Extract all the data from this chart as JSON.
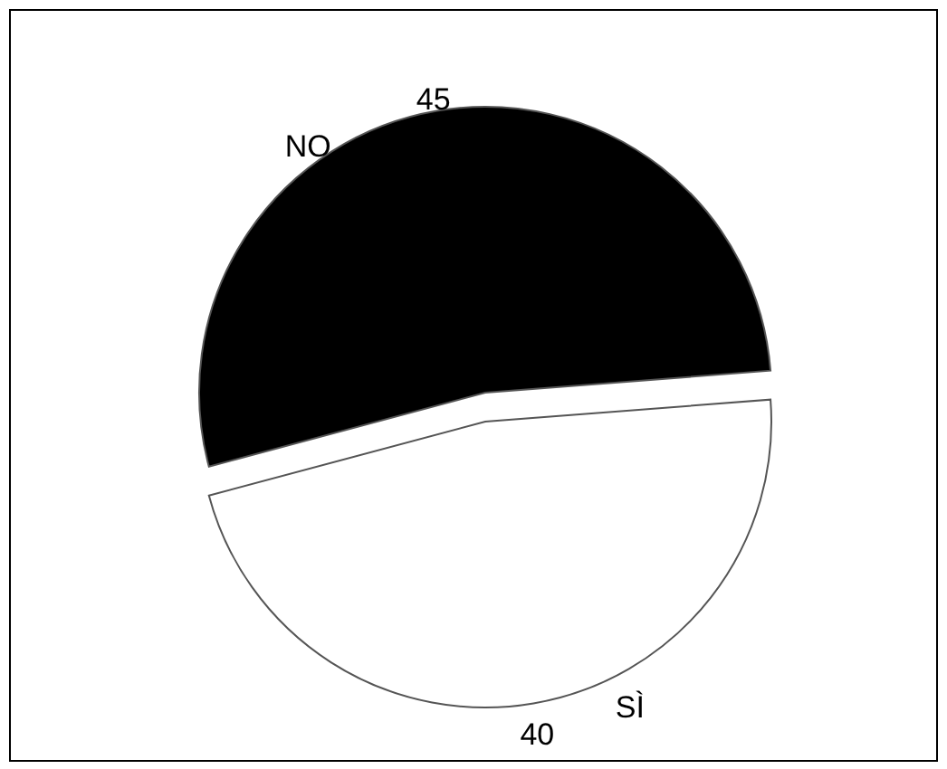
{
  "chart_data": {
    "type": "pie",
    "categories": [
      "NO",
      "SÌ"
    ],
    "values": [
      45,
      40
    ],
    "colors": [
      "#000000",
      "#ffffff"
    ],
    "data_labels": true
  }
}
